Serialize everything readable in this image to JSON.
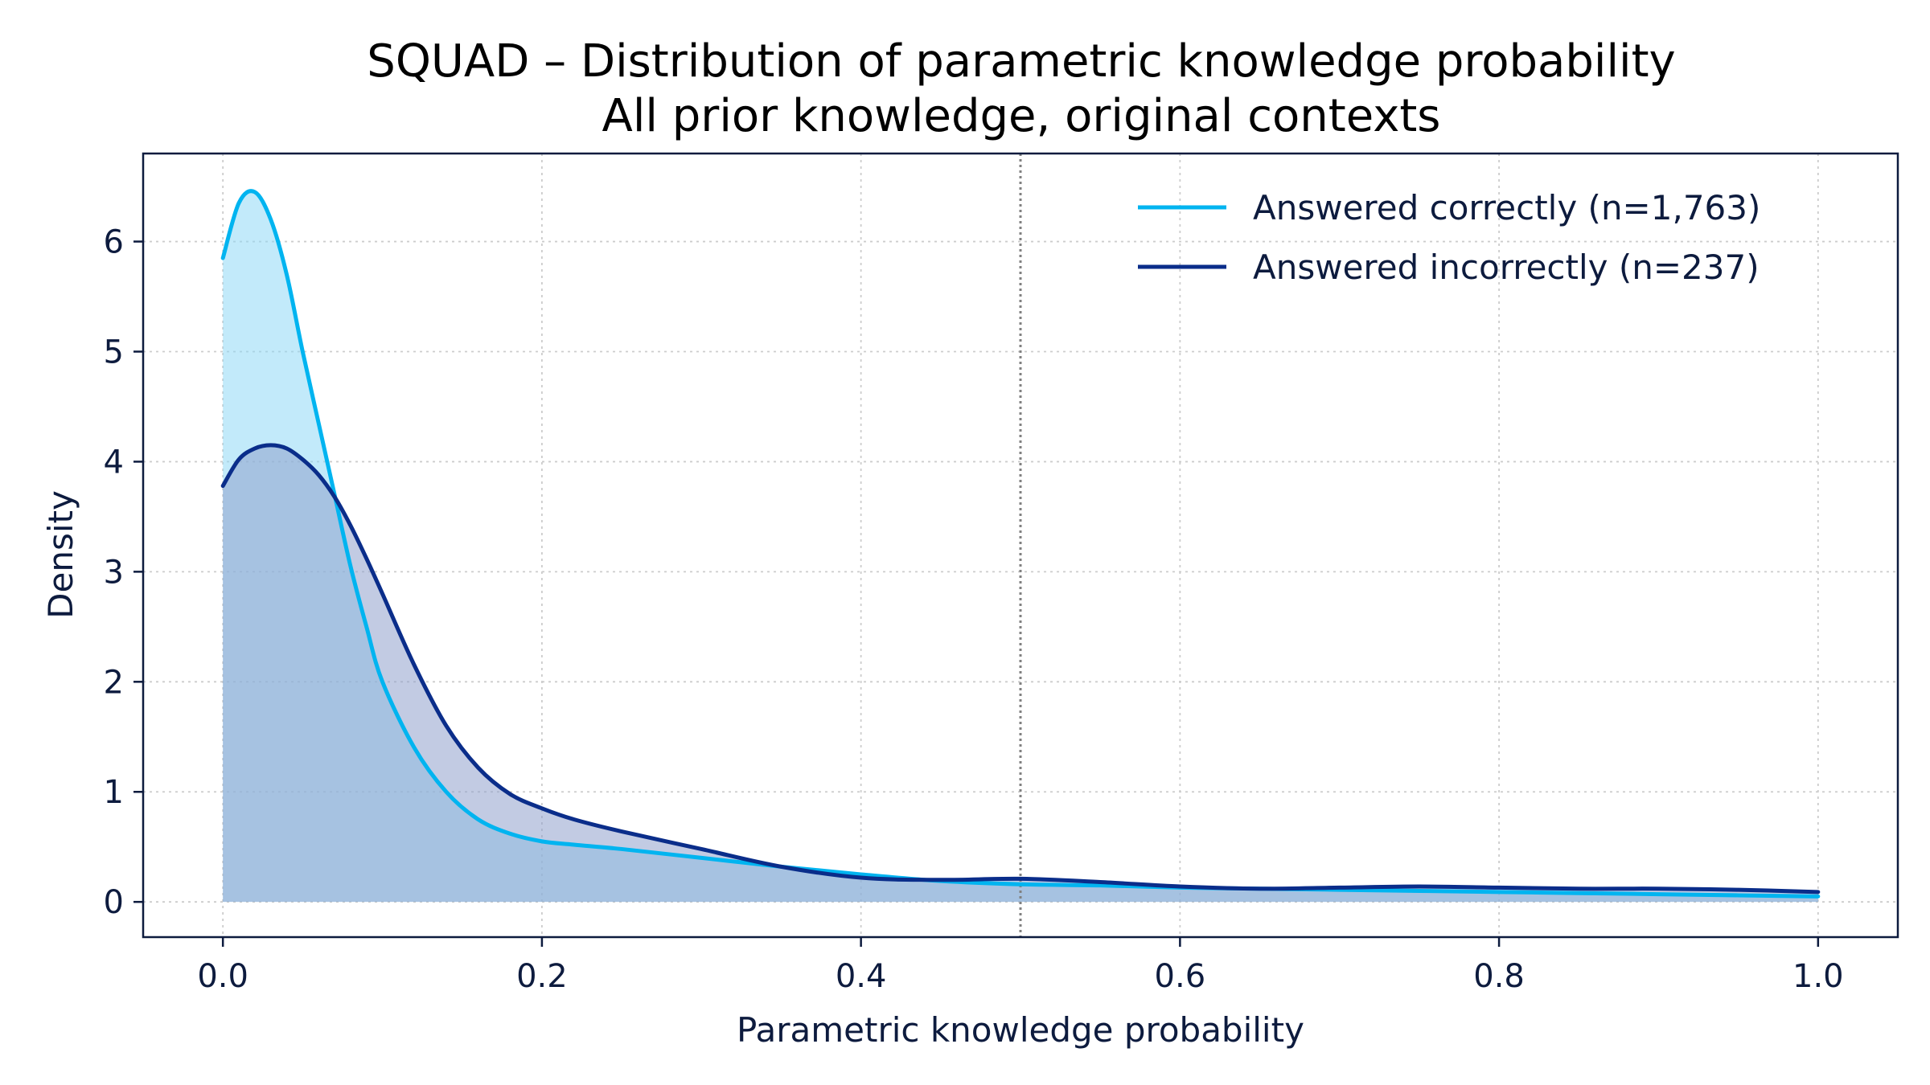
{
  "chart_data": {
    "type": "area",
    "title": "SQUAD – Distribution of parametric knowledge probability",
    "subtitle": "All prior knowledge, original contexts",
    "xlabel": "Parametric knowledge probability",
    "ylabel": "Density",
    "xlim": [
      -0.05,
      1.05
    ],
    "ylim": [
      -0.32,
      6.8
    ],
    "xticks": [
      0.0,
      0.2,
      0.4,
      0.6,
      0.8,
      1.0
    ],
    "xtick_labels": [
      "0.0",
      "0.2",
      "0.4",
      "0.6",
      "0.8",
      "1.0"
    ],
    "yticks": [
      0,
      1,
      2,
      3,
      4,
      5,
      6
    ],
    "ytick_labels": [
      "0",
      "1",
      "2",
      "3",
      "4",
      "5",
      "6"
    ],
    "grid": true,
    "legend_position": "top-right",
    "reference_line": {
      "x": 0.5,
      "style": "dotted",
      "color": "#808080"
    },
    "series": [
      {
        "name": "Answered correctly (n=1,763)",
        "color": "#00b4f0",
        "fill_color": "#8fd9f5",
        "x": [
          0.0,
          0.01,
          0.02,
          0.03,
          0.04,
          0.05,
          0.06,
          0.07,
          0.08,
          0.09,
          0.1,
          0.12,
          0.14,
          0.16,
          0.18,
          0.2,
          0.22,
          0.25,
          0.3,
          0.35,
          0.4,
          0.45,
          0.5,
          0.55,
          0.6,
          0.65,
          0.7,
          0.75,
          0.8,
          0.85,
          0.9,
          0.95,
          1.0
        ],
        "y": [
          5.85,
          6.35,
          6.45,
          6.2,
          5.7,
          5.0,
          4.35,
          3.7,
          3.05,
          2.5,
          2.0,
          1.4,
          1.0,
          0.75,
          0.62,
          0.55,
          0.52,
          0.48,
          0.4,
          0.32,
          0.25,
          0.19,
          0.16,
          0.15,
          0.13,
          0.12,
          0.11,
          0.1,
          0.09,
          0.08,
          0.07,
          0.06,
          0.05
        ]
      },
      {
        "name": "Answered incorrectly (n=237)",
        "color": "#0a2d8a",
        "fill_color": "#8fa0cc",
        "x": [
          0.0,
          0.01,
          0.02,
          0.03,
          0.04,
          0.05,
          0.06,
          0.07,
          0.08,
          0.09,
          0.1,
          0.12,
          0.14,
          0.16,
          0.18,
          0.2,
          0.22,
          0.25,
          0.3,
          0.35,
          0.4,
          0.45,
          0.5,
          0.55,
          0.6,
          0.65,
          0.7,
          0.75,
          0.8,
          0.85,
          0.9,
          0.95,
          1.0
        ],
        "y": [
          3.78,
          4.02,
          4.12,
          4.15,
          4.12,
          4.02,
          3.88,
          3.68,
          3.42,
          3.12,
          2.8,
          2.15,
          1.6,
          1.22,
          0.98,
          0.85,
          0.75,
          0.64,
          0.48,
          0.32,
          0.22,
          0.2,
          0.21,
          0.18,
          0.14,
          0.12,
          0.13,
          0.14,
          0.13,
          0.12,
          0.12,
          0.11,
          0.09
        ]
      }
    ]
  }
}
